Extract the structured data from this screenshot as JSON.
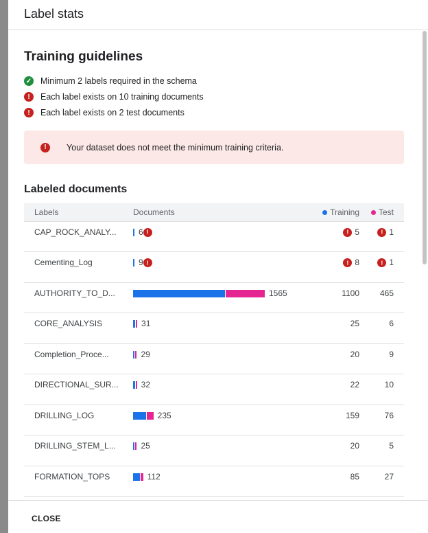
{
  "dialog": {
    "title": "Label stats",
    "close_label": "CLOSE"
  },
  "guidelines": {
    "title": "Training guidelines",
    "items": [
      {
        "status": "ok",
        "text": "Minimum 2 labels required in the schema"
      },
      {
        "status": "error",
        "text": "Each label exists on 10 training documents"
      },
      {
        "status": "error",
        "text": "Each label exists on 2 test documents"
      }
    ],
    "alert": "Your dataset does not meet the minimum training criteria."
  },
  "labeled": {
    "title": "Labeled documents",
    "headers": {
      "labels": "Labels",
      "documents": "Documents",
      "training": "Training",
      "test": "Test"
    },
    "colors": {
      "training": "#1a73e8",
      "test": "#e52592"
    },
    "rows": [
      {
        "label": "CAP_ROCK_ANALY...",
        "documents": 6,
        "training": 5,
        "test": 1,
        "doc_warn": true,
        "train_warn": true,
        "test_warn": true
      },
      {
        "label": "Cementing_Log",
        "documents": 9,
        "training": 8,
        "test": 1,
        "doc_warn": true,
        "train_warn": true,
        "test_warn": true
      },
      {
        "label": "AUTHORITY_TO_D...",
        "documents": 1565,
        "training": 1100,
        "test": 465
      },
      {
        "label": "CORE_ANALYSIS",
        "documents": 31,
        "training": 25,
        "test": 6
      },
      {
        "label": "Completion_Proce...",
        "documents": 29,
        "training": 20,
        "test": 9
      },
      {
        "label": "DIRECTIONAL_SUR...",
        "documents": 32,
        "training": 22,
        "test": 10
      },
      {
        "label": "DRILLING_LOG",
        "documents": 235,
        "training": 159,
        "test": 76
      },
      {
        "label": "DRILLING_STEM_L...",
        "documents": 25,
        "training": 20,
        "test": 5
      },
      {
        "label": "FORMATION_TOPS",
        "documents": 112,
        "training": 85,
        "test": 27
      }
    ]
  }
}
